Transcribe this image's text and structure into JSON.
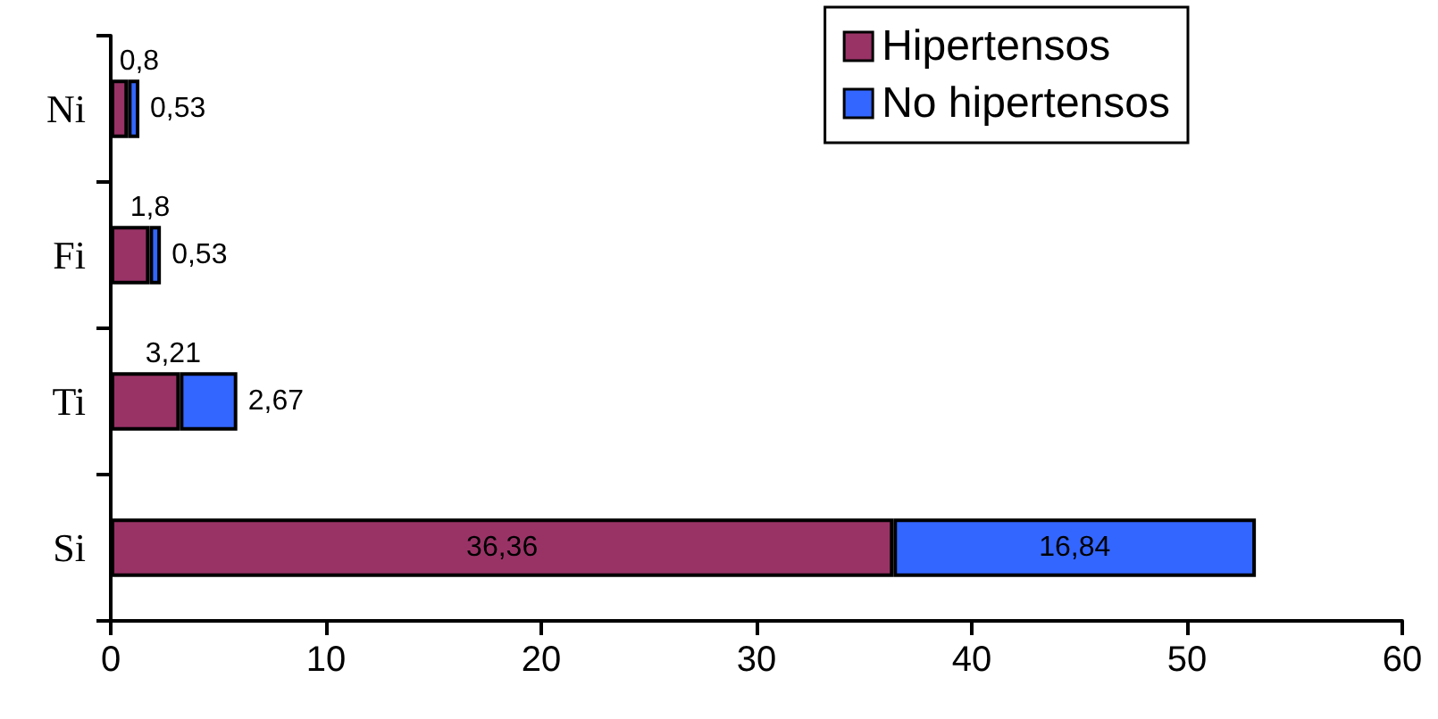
{
  "chart_data": {
    "type": "bar",
    "orientation": "horizontal",
    "stacked": true,
    "categories": [
      "Ni",
      "Fi",
      "Ti",
      "Si"
    ],
    "series": [
      {
        "name": "Hipertensos",
        "color": "#993366",
        "values": [
          0.8,
          1.8,
          3.21,
          36.36
        ],
        "value_labels": [
          "0,8",
          "1,8",
          "3,21",
          "36,36"
        ]
      },
      {
        "name": "No hipertensos",
        "color": "#3366ff",
        "values": [
          0.53,
          0.53,
          2.67,
          16.84
        ],
        "value_labels": [
          "0,53",
          "0,53",
          "2,67",
          "16,84"
        ]
      }
    ],
    "xlim": [
      0,
      60
    ],
    "xticks": [
      0,
      10,
      20,
      30,
      40,
      50,
      60
    ],
    "grid": false,
    "legend": "top right"
  }
}
